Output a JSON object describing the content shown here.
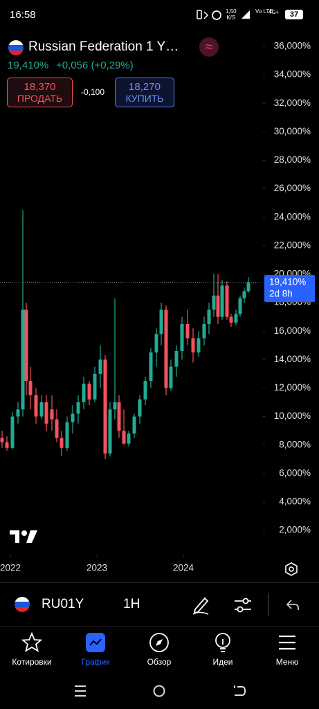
{
  "status_bar": {
    "time": "16:58",
    "speed": "1,50",
    "speed_unit": "K/S",
    "volte": "Vo LTE",
    "network": "4G+",
    "battery": "37"
  },
  "header": {
    "title": "Russian Federation 1 Y…",
    "price": "19,410%",
    "change": "+0,056 (+0,29%)",
    "sell": {
      "price": "18,370",
      "label": "ПРОДАТЬ"
    },
    "spread": "-0,100",
    "buy": {
      "price": "18,270",
      "label": "КУПИТЬ"
    }
  },
  "chart_data": {
    "type": "candlestick",
    "x": [
      2021.904,
      2021.96,
      2022.024,
      2022.088,
      2022.144,
      2022.184,
      2022.232,
      2022.296,
      2022.36,
      2022.416,
      2022.48,
      2022.536,
      2022.592,
      2022.656,
      2022.72,
      2022.784,
      2022.848,
      2022.912,
      2022.976,
      2023.04,
      2023.096,
      2023.152,
      2023.208,
      2023.256,
      2023.312,
      2023.368,
      2023.432,
      2023.496,
      2023.56,
      2023.624,
      2023.688,
      2023.744,
      2023.8,
      2023.856,
      2023.92,
      2023.984,
      2024.048,
      2024.112,
      2024.176,
      2024.24,
      2024.296,
      2024.352,
      2024.4,
      2024.448,
      2024.504,
      2024.552,
      2024.608,
      2024.656,
      2024.704,
      2024.752
    ],
    "open": [
      8.5,
      8.2,
      7.8,
      10,
      10.5,
      17.5,
      12.5,
      11.5,
      10,
      11,
      10.5,
      9.8,
      8.5,
      7.8,
      9.6,
      10.2,
      11,
      12.3,
      11.2,
      13,
      14,
      7.4,
      10.5,
      11,
      9,
      8.1,
      8.8,
      10,
      11.2,
      12.5,
      14.5,
      15.8,
      17.5,
      12,
      13.5,
      14.6,
      16.5,
      15.5,
      14.5,
      15.5,
      16.5,
      17.5,
      18.5,
      17,
      19.2,
      17,
      16.6,
      17.2,
      18.3,
      18.8
    ],
    "high": [
      9,
      8.6,
      10.3,
      11,
      24.5,
      18,
      13.5,
      12,
      11.5,
      11.5,
      11.5,
      10.5,
      9,
      10,
      10.8,
      11.5,
      12.8,
      12.5,
      13.5,
      15,
      14.3,
      11,
      18.3,
      11.5,
      10.5,
      9,
      10.2,
      11.5,
      12.8,
      14.8,
      16.2,
      18,
      17.8,
      14,
      15,
      17,
      17.5,
      16.2,
      16,
      17,
      18,
      20,
      20,
      19.6,
      19.5,
      17.2,
      17.5,
      18.5,
      19,
      19.8
    ],
    "low": [
      7.8,
      7.6,
      7.7,
      9.5,
      10,
      11.5,
      10.5,
      9.5,
      9.8,
      9,
      9,
      8.2,
      7.2,
      7.6,
      8.8,
      9.5,
      10.5,
      10.8,
      11,
      12,
      7,
      7.2,
      9.8,
      8.5,
      8,
      7.9,
      8.5,
      9.5,
      10.8,
      12,
      13.5,
      15,
      11.5,
      11.8,
      12.8,
      14,
      15,
      13.8,
      14.2,
      15,
      15.8,
      17,
      16.5,
      16.8,
      16.8,
      16.3,
      16.4,
      17,
      18,
      18.7
    ],
    "close": [
      8.2,
      7.8,
      10,
      10.5,
      17.5,
      12.5,
      11.5,
      10,
      11,
      9.5,
      9.8,
      8.5,
      7.8,
      9.6,
      10.2,
      11,
      12.3,
      11.2,
      13,
      14,
      7.4,
      10.5,
      11,
      9,
      8.1,
      8.8,
      10,
      11.2,
      12.5,
      14.5,
      15.8,
      17.5,
      12,
      13.5,
      14.6,
      16.5,
      15.5,
      14.5,
      15.5,
      16.5,
      17.5,
      18.5,
      17,
      19.2,
      17,
      16.6,
      17.2,
      18.3,
      18.8,
      19.41
    ],
    "up_color": "#22ab94",
    "down_color": "#f7525f",
    "xlim": [
      2021.88,
      2024.92
    ],
    "xticks": [
      2022,
      2023,
      2024
    ],
    "ylim": [
      0.35,
      37.07
    ],
    "yticks": [
      {
        "value": 2,
        "label": "2,000%"
      },
      {
        "value": 4,
        "label": "4,000%"
      },
      {
        "value": 6,
        "label": "6,000%"
      },
      {
        "value": 8,
        "label": "8,000%"
      },
      {
        "value": 10,
        "label": "10,000%"
      },
      {
        "value": 12,
        "label": "12,000%"
      },
      {
        "value": 14,
        "label": "14,000%"
      },
      {
        "value": 16,
        "label": "16,000%"
      },
      {
        "value": 18,
        "label": "18,000%"
      },
      {
        "value": 20,
        "label": "20,000%"
      },
      {
        "value": 22,
        "label": "22,000%"
      },
      {
        "value": 24,
        "label": "24,000%"
      },
      {
        "value": 26,
        "label": "26,000%"
      },
      {
        "value": 28,
        "label": "28,000%"
      },
      {
        "value": 30,
        "label": "30,000%"
      },
      {
        "value": 32,
        "label": "32,000%"
      },
      {
        "value": 34,
        "label": "34,000%"
      },
      {
        "value": 36,
        "label": "36,000%"
      }
    ],
    "last_price": {
      "value": 19.41,
      "label": "19,410%"
    },
    "countdown": "2d 8h"
  },
  "toolbar": {
    "symbol": "RU01Y",
    "interval": "1H"
  },
  "nav": [
    "Котировки",
    "График",
    "Обзор",
    "Идеи",
    "Меню"
  ]
}
